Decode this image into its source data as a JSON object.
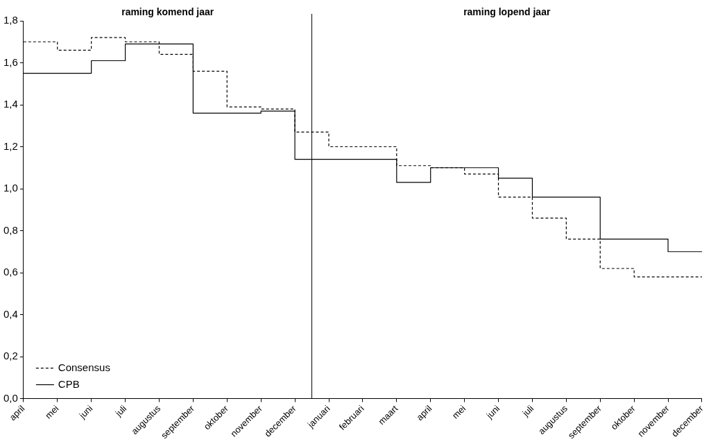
{
  "chart_data": {
    "type": "step",
    "categories": [
      "april",
      "mei",
      "juni",
      "juli",
      "augustus",
      "september",
      "oktober",
      "november",
      "december",
      "januari",
      "februari",
      "maart",
      "april",
      "mei",
      "juni",
      "juli",
      "augustus",
      "september",
      "oktober",
      "november",
      "december"
    ],
    "series": [
      {
        "name": "Consensus",
        "color": "#000000",
        "line_style": "dashed",
        "values": [
          1.7,
          1.66,
          1.72,
          1.7,
          1.64,
          1.56,
          1.39,
          1.38,
          1.27,
          1.2,
          1.2,
          1.11,
          1.1,
          1.07,
          0.96,
          0.86,
          0.76,
          0.62,
          0.58,
          0.58,
          0.58
        ]
      },
      {
        "name": "CPB",
        "color": "#000000",
        "line_style": "solid",
        "values": [
          1.55,
          1.55,
          1.61,
          1.69,
          1.69,
          1.36,
          1.36,
          1.37,
          1.14,
          1.14,
          1.14,
          1.03,
          1.1,
          1.1,
          1.05,
          0.96,
          0.96,
          0.76,
          0.76,
          0.7,
          0.7
        ]
      }
    ],
    "ylim": [
      0,
      1.8
    ],
    "yticks": [
      {
        "value": 0,
        "label": "0,0"
      },
      {
        "value": 0.2,
        "label": "0,2"
      },
      {
        "value": 0.4,
        "label": "0,4"
      },
      {
        "value": 0.6,
        "label": "0,6"
      },
      {
        "value": 0.8,
        "label": "0,8"
      },
      {
        "value": 1,
        "label": "1,0"
      },
      {
        "value": 1.2,
        "label": "1,2"
      },
      {
        "value": 1.4,
        "label": "1,4"
      },
      {
        "value": 1.6,
        "label": "1,6"
      },
      {
        "value": 1.8,
        "label": "1,8"
      }
    ],
    "annotations": [
      "raming komend jaar",
      "raming lopend jaar"
    ],
    "grid": false,
    "legend": "bottom left",
    "marker": "none"
  }
}
